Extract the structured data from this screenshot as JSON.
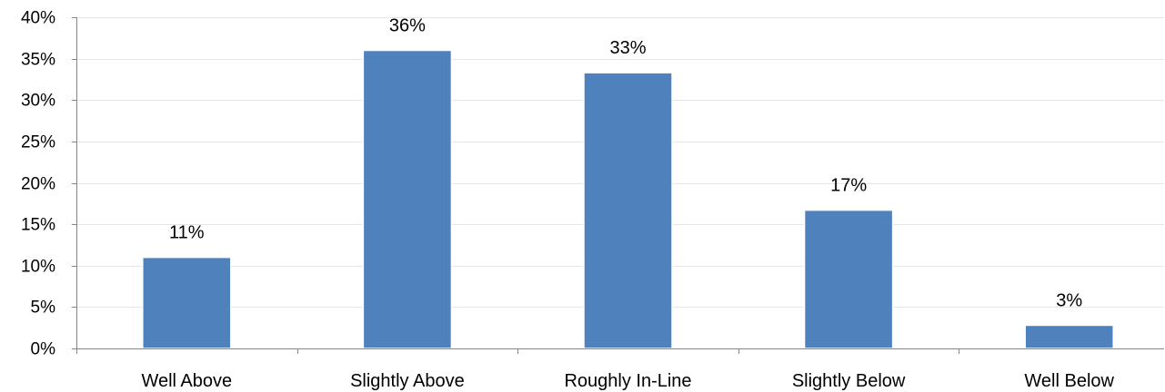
{
  "chart_data": {
    "type": "bar",
    "categories": [
      "Well Above",
      "Slightly Above",
      "Roughly In-Line",
      "Slightly Below",
      "Well Below"
    ],
    "values": [
      11,
      36,
      33.3,
      16.7,
      2.8
    ],
    "data_labels": [
      "11%",
      "36%",
      "33%",
      "17%",
      "3%"
    ],
    "title": "",
    "xlabel": "",
    "ylabel": "",
    "ylim": [
      0,
      40
    ],
    "yticks": [
      0,
      5,
      10,
      15,
      20,
      25,
      30,
      35,
      40
    ],
    "ytick_labels": [
      "0%",
      "5%",
      "10%",
      "15%",
      "20%",
      "25%",
      "30%",
      "35%",
      "40%"
    ],
    "grid": true,
    "legend": "none",
    "bar_color": "#4f81bd"
  }
}
